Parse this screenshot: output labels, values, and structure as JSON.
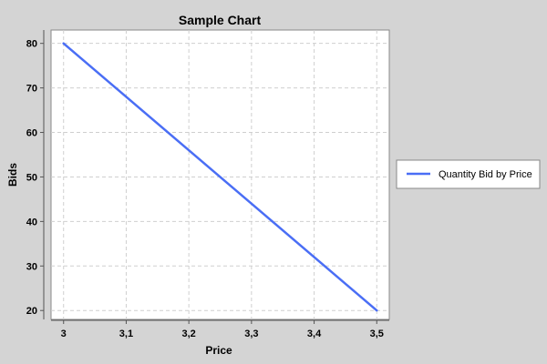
{
  "chart_data": {
    "type": "line",
    "title": "Sample Chart",
    "xlabel": "Price",
    "ylabel": "Bids",
    "x_ticks": [
      "3",
      "3,1",
      "3,2",
      "3,3",
      "3,4",
      "3,5"
    ],
    "y_ticks": [
      "20",
      "30",
      "40",
      "50",
      "60",
      "70",
      "80"
    ],
    "xlim": [
      2.98,
      3.52
    ],
    "ylim": [
      18,
      83
    ],
    "grid": true,
    "legend_position": "right",
    "series": [
      {
        "name": "Quantity Bid by Price",
        "color": "#4a6ef5",
        "points": [
          [
            3.0,
            80
          ],
          [
            3.5,
            20
          ]
        ]
      }
    ]
  }
}
